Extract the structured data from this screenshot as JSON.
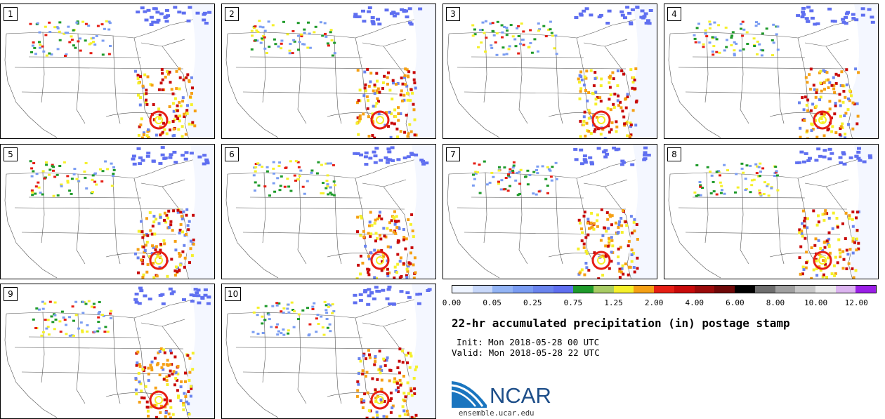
{
  "panels": [
    {
      "label": "1"
    },
    {
      "label": "2"
    },
    {
      "label": "3"
    },
    {
      "label": "4"
    },
    {
      "label": "5"
    },
    {
      "label": "6"
    },
    {
      "label": "7"
    },
    {
      "label": "8"
    },
    {
      "label": "9"
    },
    {
      "label": "10"
    }
  ],
  "colorbar": {
    "colors": [
      "#eef4ff",
      "#c8d8fa",
      "#93b4f5",
      "#7a9cf2",
      "#6a84ee",
      "#5f6ff0",
      "#1e9a2a",
      "#a8cc64",
      "#f5f02a",
      "#f5a014",
      "#e61e14",
      "#c80a0a",
      "#9a0a0a",
      "#6e0808",
      "#000000",
      "#6e6e6e",
      "#a0a0a0",
      "#c8c8c8",
      "#ebebeb",
      "#dcb4f0",
      "#9a1ee6"
    ],
    "tick_labels": [
      "0.00",
      "0.05",
      "0.25",
      "0.75",
      "1.25",
      "2.00",
      "4.00",
      "6.00",
      "8.00",
      "10.00",
      "12.00"
    ]
  },
  "title": "22-hr accumulated precipitation (in) postage stamp",
  "init": "Init: Mon 2018-05-28 00 UTC",
  "valid": "Valid: Mon 2018-05-28 22 UTC",
  "logo_text": "NCAR",
  "site": "ensemble.ucar.edu"
}
